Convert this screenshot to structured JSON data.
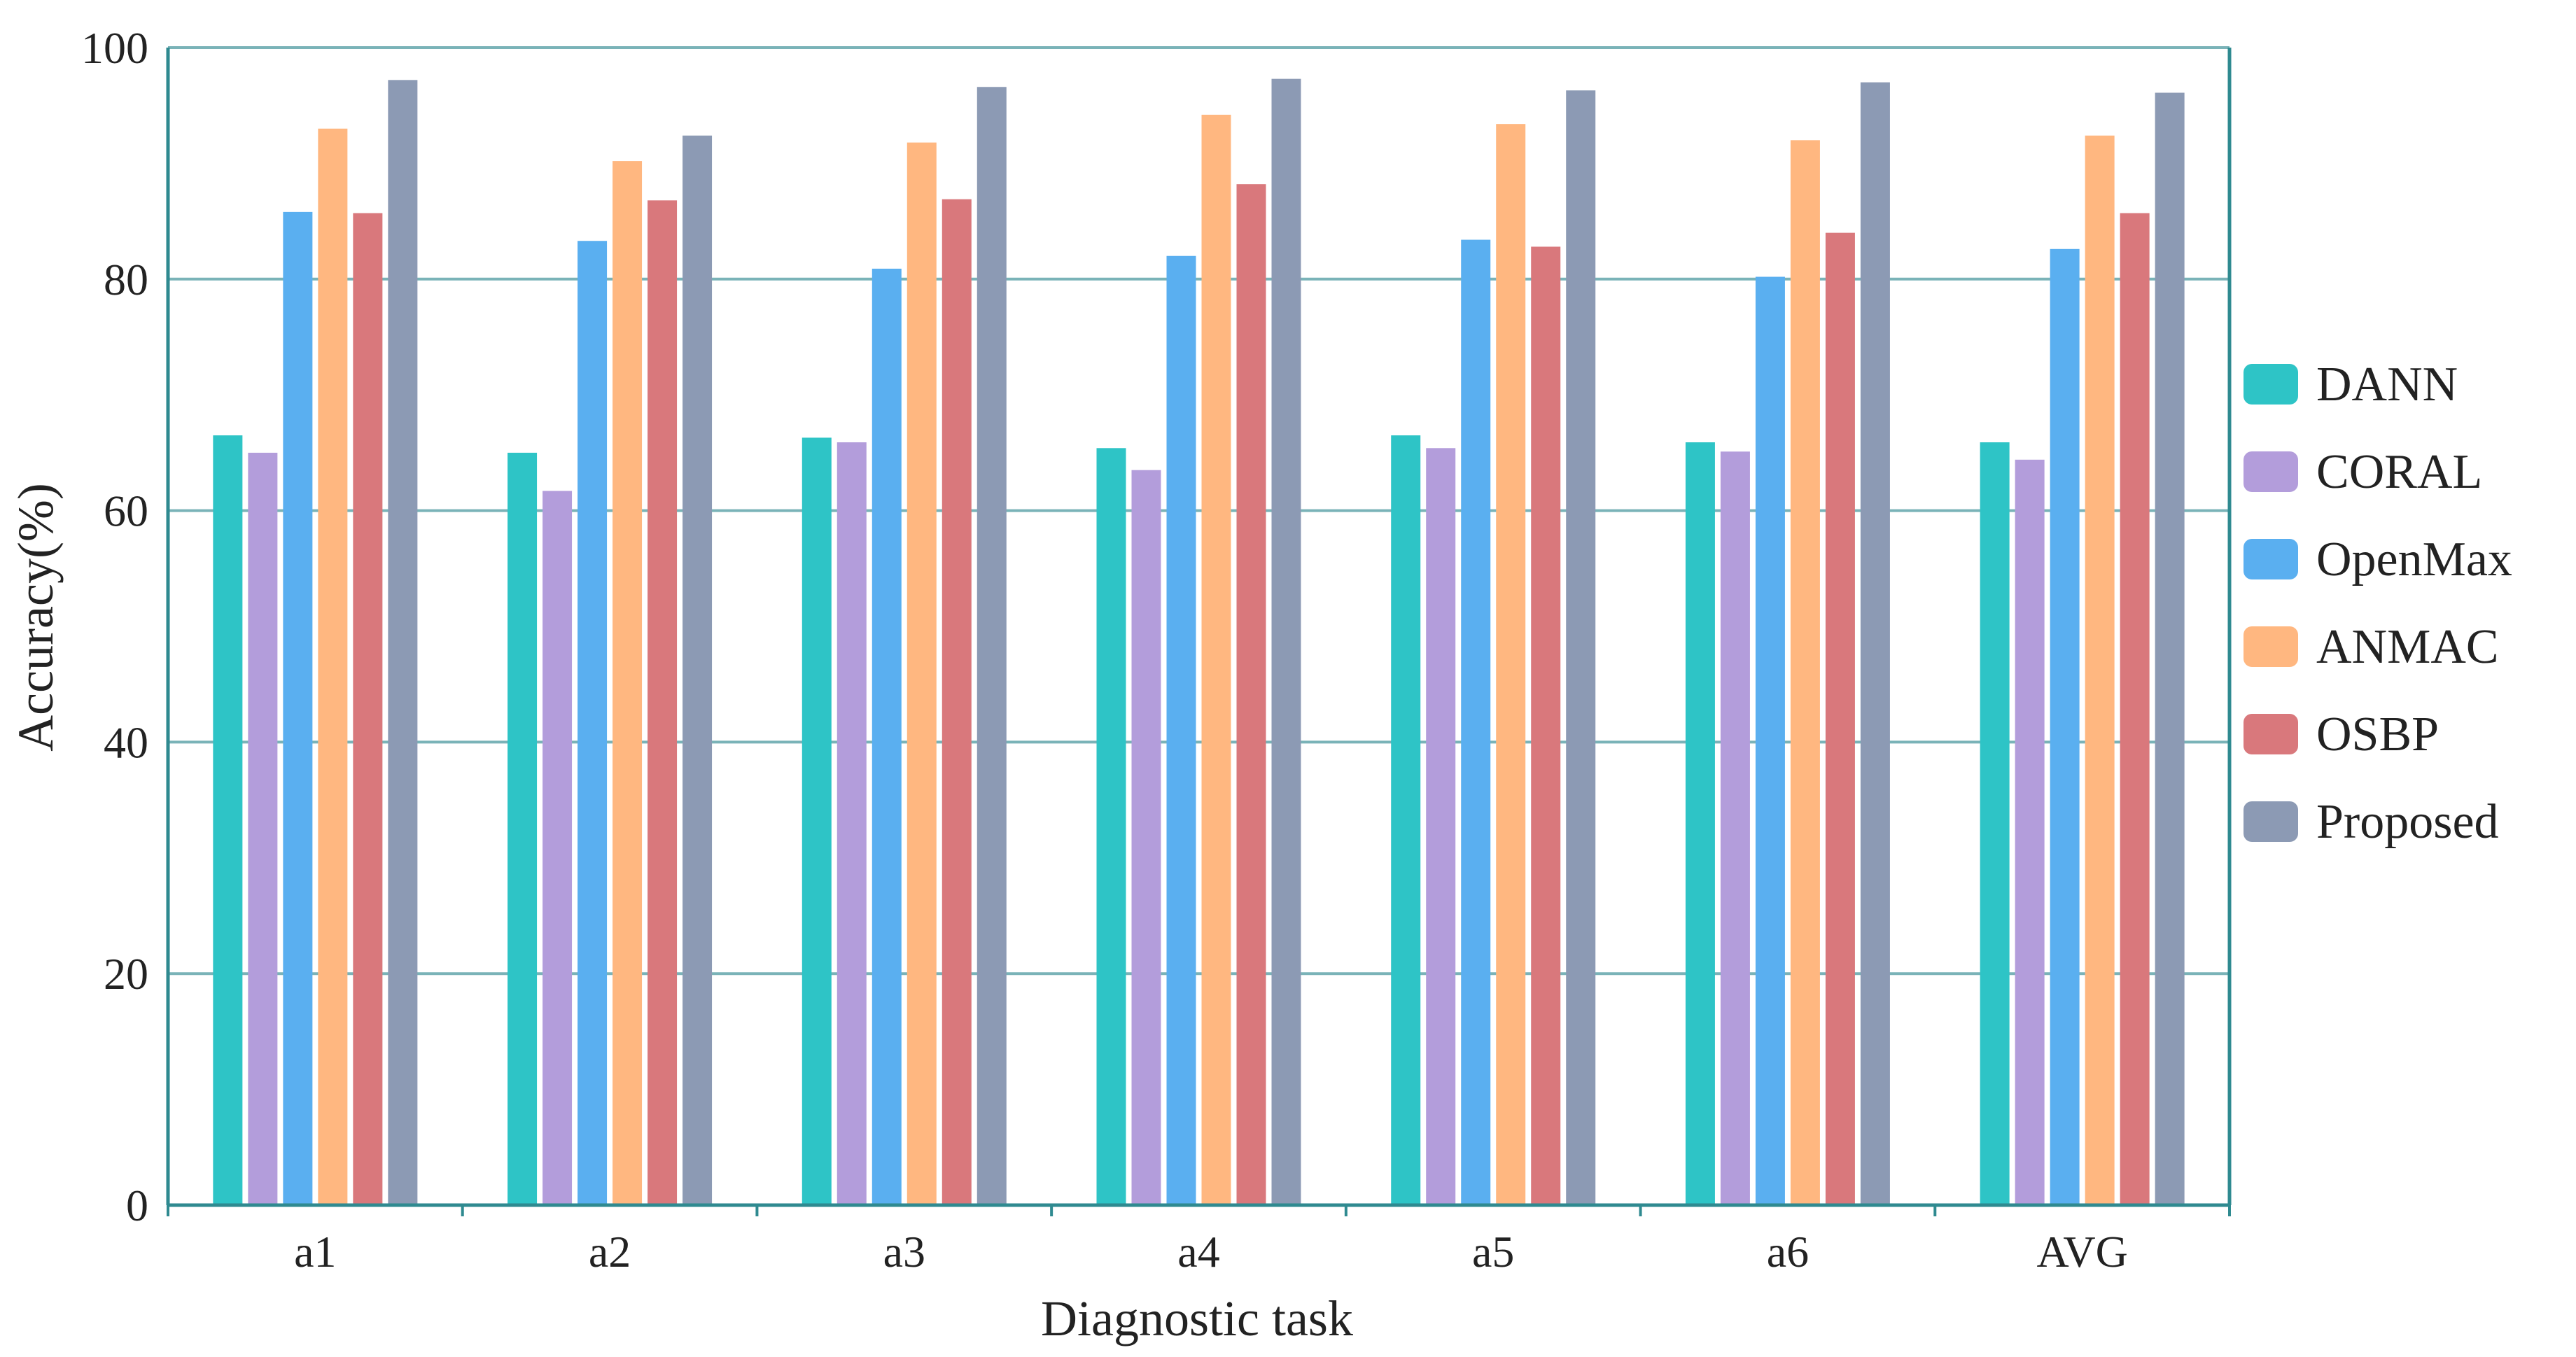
{
  "chart_data": {
    "type": "bar",
    "title": "",
    "xlabel": "Diagnostic task",
    "ylabel": "Accuracy(%)",
    "ylim": [
      0,
      100
    ],
    "yticks": [
      "0",
      "20",
      "40",
      "60",
      "80",
      "100"
    ],
    "grid": true,
    "legend_position": "right",
    "categories": [
      "a1",
      "a2",
      "a3",
      "a4",
      "a5",
      "a6",
      "AVG"
    ],
    "series": [
      {
        "name": "DANN",
        "color": "#2ec4c6",
        "values": [
          66.5,
          65.0,
          66.3,
          65.4,
          66.5,
          65.9,
          65.9
        ]
      },
      {
        "name": "CORAL",
        "color": "#b39ddb",
        "values": [
          65.0,
          61.7,
          65.9,
          63.5,
          65.4,
          65.1,
          64.4
        ]
      },
      {
        "name": "OpenMax",
        "color": "#5aaff0",
        "values": [
          85.8,
          83.3,
          80.9,
          82.0,
          83.4,
          80.2,
          82.6
        ]
      },
      {
        "name": "ANMAC",
        "color": "#ffb780",
        "values": [
          93.0,
          90.2,
          91.8,
          94.2,
          93.4,
          92.0,
          92.4
        ]
      },
      {
        "name": "OSBP",
        "color": "#d9787c",
        "values": [
          85.7,
          86.8,
          86.9,
          88.2,
          82.8,
          84.0,
          85.7
        ]
      },
      {
        "name": "Proposed",
        "color": "#8c9ab4",
        "values": [
          97.2,
          92.4,
          96.6,
          97.3,
          96.3,
          97.0,
          96.1
        ]
      }
    ]
  }
}
